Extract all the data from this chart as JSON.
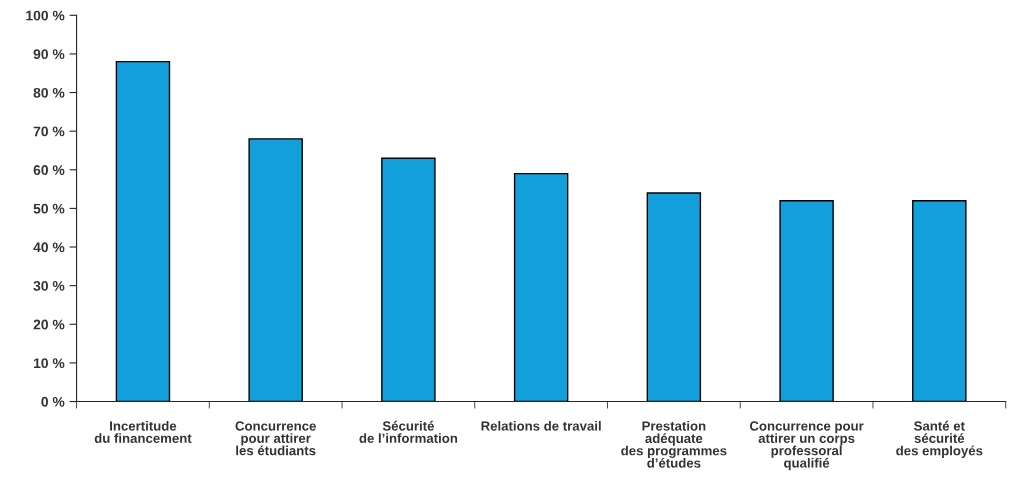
{
  "chart_data": {
    "type": "bar",
    "categories": [
      "Incertitude\ndu financement",
      "Concurrence\npour attirer\nles étudiants",
      "Sécurité\nde l’information",
      "Relations de travail",
      "Prestation\nadéquate\ndes programmes\nd’études",
      "Concurrence pour\nattirer un corps\nprofessoral\nqualifié",
      "Santé et\nsécurité\ndes employés"
    ],
    "values": [
      88,
      68,
      63,
      59,
      54,
      52,
      52
    ],
    "color": "#139fdb",
    "ylim": [
      0,
      100
    ],
    "yticks": [
      {
        "value": 0,
        "label": "0 %"
      },
      {
        "value": 10,
        "label": "10 %"
      },
      {
        "value": 20,
        "label": "20 %"
      },
      {
        "value": 30,
        "label": "30 %"
      },
      {
        "value": 40,
        "label": "40 %"
      },
      {
        "value": 50,
        "label": "50 %"
      },
      {
        "value": 60,
        "label": "60 %"
      },
      {
        "value": 70,
        "label": "70 %"
      },
      {
        "value": 80,
        "label": "80 %"
      },
      {
        "value": 90,
        "label": "90 %"
      },
      {
        "value": 100,
        "label": "100 %"
      }
    ],
    "grid": false,
    "legend": false
  }
}
